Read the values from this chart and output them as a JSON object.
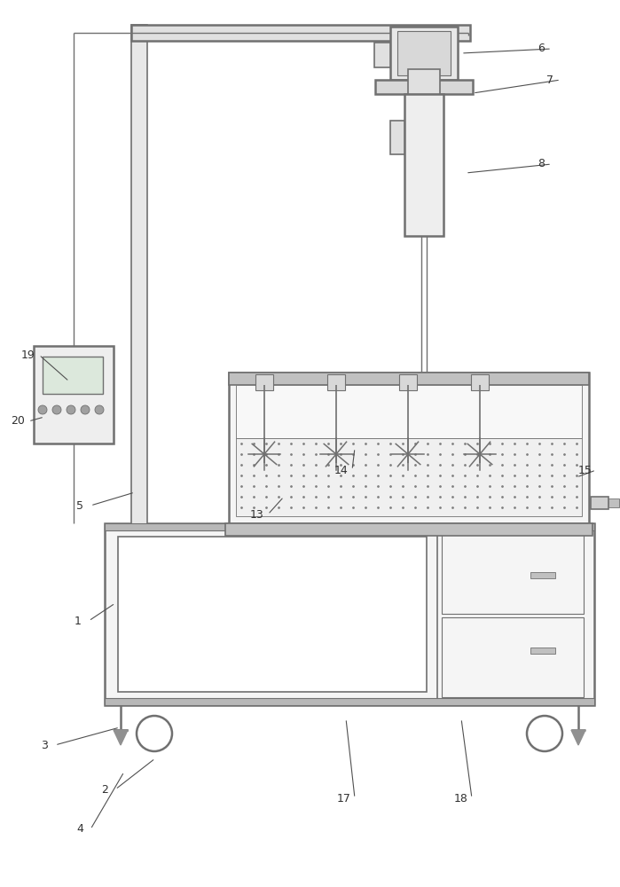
{
  "bg_color": "#ffffff",
  "lc": "#707070",
  "lc_dark": "#505050",
  "fill_gray": "#e0e0e0",
  "fill_mid": "#c8c8c8",
  "fill_white": "#ffffff",
  "fill_light": "#f2f2f2",
  "dot_color": "#888888",
  "label_fs": 9,
  "lw": 1.2
}
